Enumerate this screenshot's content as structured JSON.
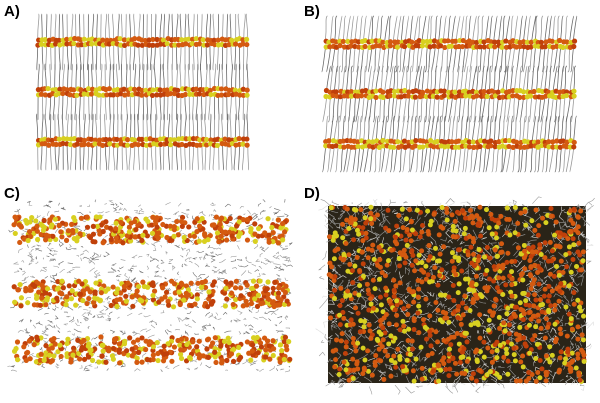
{
  "panels": [
    {
      "id": "a",
      "label": "A)",
      "structure": "ordered-lamellar"
    },
    {
      "id": "b",
      "label": "B)",
      "structure": "tilted-lamellar"
    },
    {
      "id": "c",
      "label": "C)",
      "structure": "disordered-lamellar"
    },
    {
      "id": "d",
      "label": "D)",
      "structure": "isotropic"
    }
  ],
  "colors": {
    "headgroup_orange": "#d45a10",
    "headgroup_red": "#c0400a",
    "headgroup_yellow": "#d8d020",
    "tail_gray": "#9a9a9a",
    "tail_dark": "#6a6a6a",
    "background": "#ffffff"
  }
}
